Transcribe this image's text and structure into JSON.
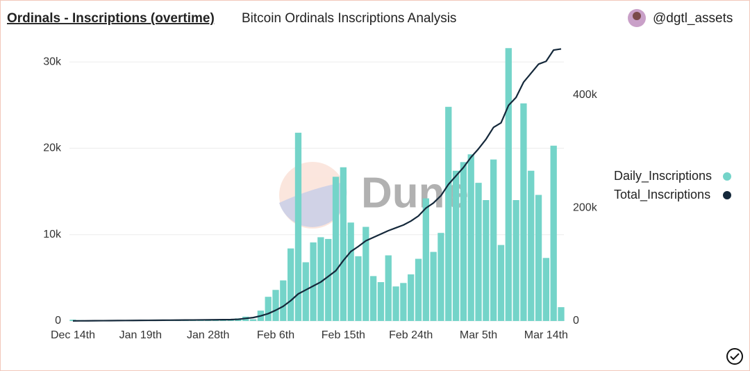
{
  "chart_data": {
    "type": "bar_line",
    "title": "Ordinals - Inscriptions (overtime)",
    "subtitle": "Bitcoin Ordinals Inscriptions Analysis",
    "author": "@dgtl_assets",
    "watermark": "Dune",
    "categories": [
      "Dec 14th",
      null,
      null,
      null,
      null,
      null,
      null,
      null,
      null,
      "Jan 19th",
      null,
      null,
      null,
      null,
      null,
      null,
      null,
      null,
      "Jan 28th",
      null,
      null,
      null,
      null,
      null,
      null,
      null,
      null,
      "Feb 6th",
      null,
      null,
      null,
      null,
      null,
      null,
      null,
      null,
      "Feb 15th",
      null,
      null,
      null,
      null,
      null,
      null,
      null,
      null,
      "Feb 24th",
      null,
      null,
      null,
      null,
      null,
      null,
      null,
      null,
      "Mar 5th",
      null,
      null,
      null,
      null,
      null,
      null,
      null,
      null,
      "Mar 14th",
      null,
      null
    ],
    "series": [
      {
        "name": "Daily_Inscriptions",
        "color": "#74d4c9",
        "kind": "bar",
        "axis": "y",
        "values": [
          150,
          100,
          80,
          120,
          100,
          90,
          110,
          100,
          90,
          120,
          100,
          110,
          100,
          90,
          100,
          100,
          120,
          110,
          100,
          130,
          150,
          200,
          300,
          500,
          200,
          1200,
          2800,
          3600,
          4700,
          8400,
          21800,
          6800,
          9100,
          9700,
          9500,
          16700,
          17800,
          11400,
          7500,
          10900,
          5200,
          4500,
          7600,
          4000,
          4400,
          5400,
          7200,
          14200,
          8000,
          10200,
          24800,
          17400,
          18400,
          19300,
          16000,
          14000,
          18700,
          8800,
          31600,
          14000,
          25200,
          17400,
          14600,
          7300,
          20300,
          1600
        ]
      },
      {
        "name": "Total_Inscriptions",
        "color": "#14283a",
        "kind": "line",
        "axis": "y2",
        "values": [
          150,
          250,
          330,
          450,
          550,
          640,
          750,
          850,
          940,
          1060,
          1160,
          1270,
          1370,
          1460,
          1560,
          1660,
          1780,
          1890,
          1990,
          2120,
          2270,
          2470,
          3000,
          4500,
          6000,
          9000,
          13000,
          19000,
          26000,
          36000,
          48000,
          55000,
          62000,
          69000,
          79000,
          89000,
          107000,
          123000,
          132000,
          142000,
          148000,
          154000,
          160000,
          165000,
          170000,
          177000,
          186000,
          200000,
          209000,
          222000,
          242000,
          257000,
          272000,
          290000,
          305000,
          322000,
          343000,
          351000,
          382000,
          396000,
          423000,
          439000,
          455000,
          460000,
          480000,
          482000
        ]
      }
    ],
    "ylim": [
      0,
      31540
    ],
    "yticks": [
      0,
      {
        "value": 10000,
        "label": "10k"
      },
      {
        "value": 20000,
        "label": "20k"
      },
      {
        "value": 30000,
        "label": "30k"
      }
    ],
    "y2lim": [
      0,
      482500
    ],
    "y2ticks": [
      0,
      {
        "value": 200000,
        "label": "200k"
      },
      {
        "value": 400000,
        "label": "400k"
      }
    ],
    "grid": true,
    "legend": "right"
  }
}
